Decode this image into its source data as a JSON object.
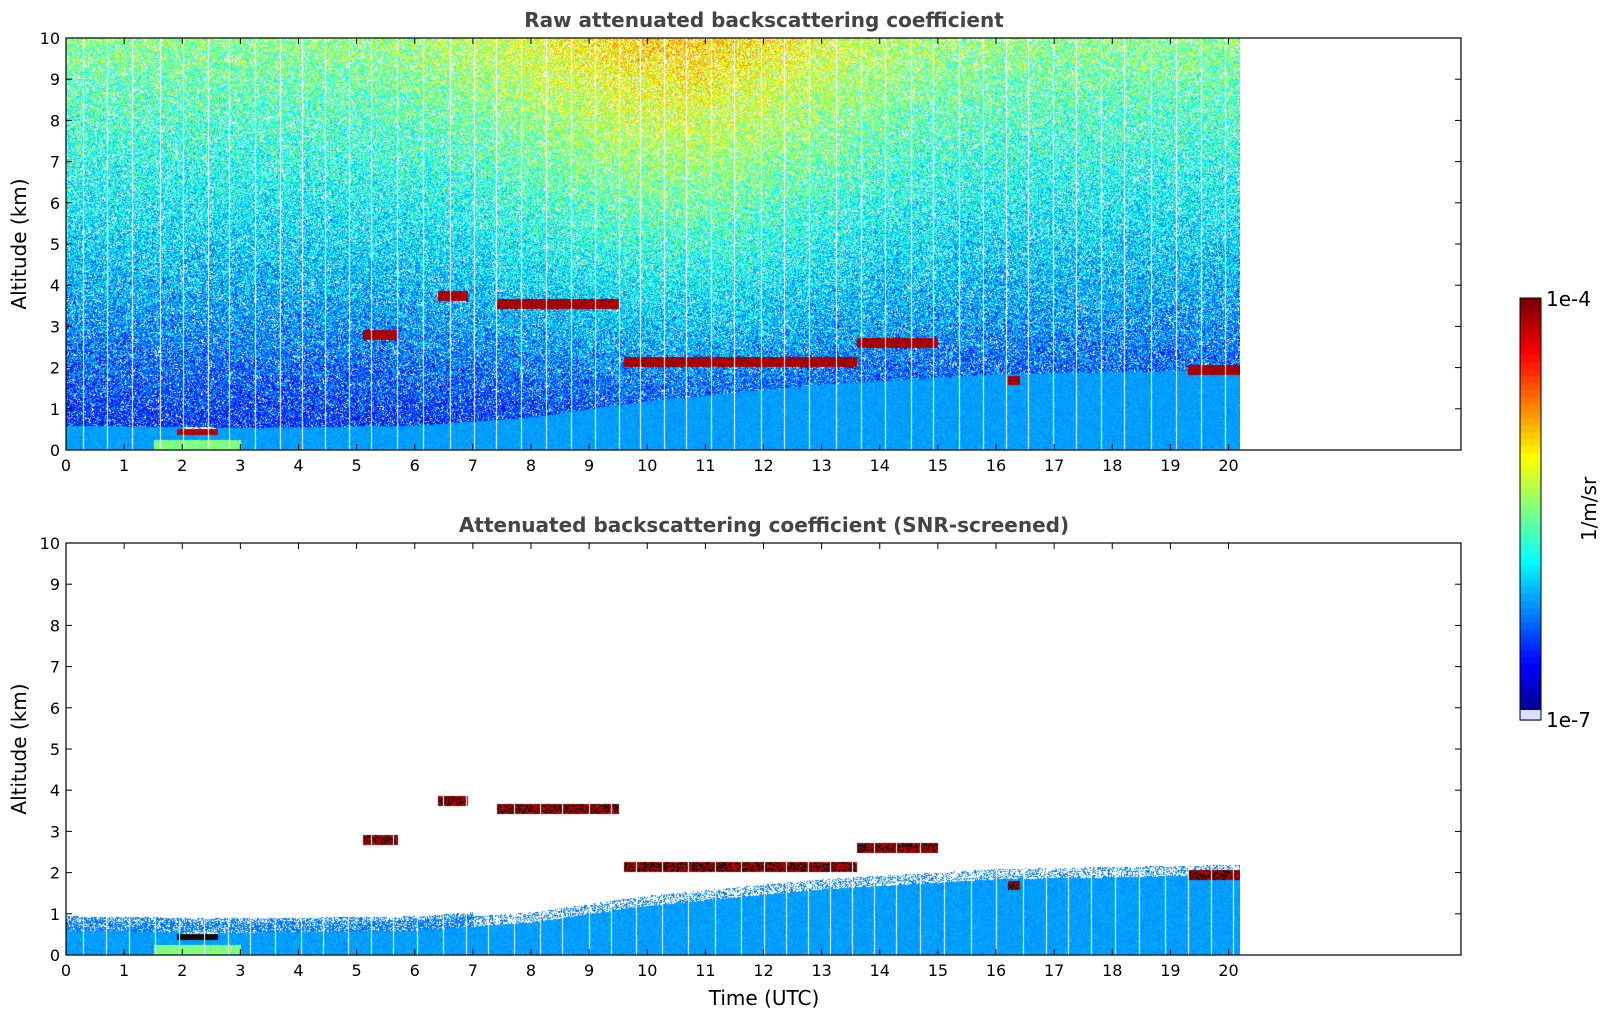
{
  "chart_data": [
    {
      "type": "heatmap",
      "title": "Raw attenuated backscattering coefficient",
      "xlabel": "",
      "ylabel": "Altitude (km)",
      "xlim": [
        0,
        24
      ],
      "ylim": [
        0,
        10
      ],
      "x_ticks": [
        "0",
        "1",
        "2",
        "3",
        "4",
        "5",
        "6",
        "7",
        "8",
        "9",
        "10",
        "11",
        "12",
        "13",
        "14",
        "15",
        "16",
        "17",
        "18",
        "19",
        "20"
      ],
      "y_ticks": [
        "0",
        "1",
        "2",
        "3",
        "4",
        "5",
        "6",
        "7",
        "8",
        "9",
        "10"
      ],
      "data_end_time": 20.2,
      "features": {
        "boundary_layer_top_km": [
          [
            0,
            0.6
          ],
          [
            3,
            0.55
          ],
          [
            6,
            0.6
          ],
          [
            8,
            0.8
          ],
          [
            10,
            1.2
          ],
          [
            13,
            1.6
          ],
          [
            16,
            1.85
          ],
          [
            20.2,
            1.95
          ]
        ],
        "cloud_layers": [
          {
            "t": [
              6.4,
              6.9
            ],
            "alt": 3.75
          },
          {
            "t": [
              5.1,
              5.7
            ],
            "alt": 2.8
          },
          {
            "t": [
              7.4,
              9.5
            ],
            "alt": 3.55
          },
          {
            "t": [
              9.6,
              13.6
            ],
            "alt": 2.15
          },
          {
            "t": [
              13.6,
              15.0
            ],
            "alt": 2.6
          },
          {
            "t": [
              16.2,
              16.4
            ],
            "alt": 1.7
          },
          {
            "t": [
              19.3,
              20.2
            ],
            "alt": 1.95
          }
        ],
        "low_cloud": {
          "t": [
            1.9,
            2.6
          ],
          "alt": 0.45
        }
      }
    },
    {
      "type": "heatmap",
      "title": "Attenuated backscattering coefficient (SNR-screened)",
      "xlabel": "Time (UTC)",
      "ylabel": "Altitude (km)",
      "xlim": [
        0,
        24
      ],
      "ylim": [
        0,
        10
      ],
      "x_ticks": [
        "0",
        "1",
        "2",
        "3",
        "4",
        "5",
        "6",
        "7",
        "8",
        "9",
        "10",
        "11",
        "12",
        "13",
        "14",
        "15",
        "16",
        "17",
        "18",
        "19",
        "20"
      ],
      "y_ticks": [
        "0",
        "1",
        "2",
        "3",
        "4",
        "5",
        "6",
        "7",
        "8",
        "9",
        "10"
      ],
      "data_end_time": 20.2
    }
  ],
  "colorbar": {
    "label": "1/m/sr",
    "max_label": "1e-4",
    "min_label": "1e-7",
    "colormap": "jet",
    "scale": "log",
    "range": [
      1e-07,
      0.0001
    ]
  }
}
